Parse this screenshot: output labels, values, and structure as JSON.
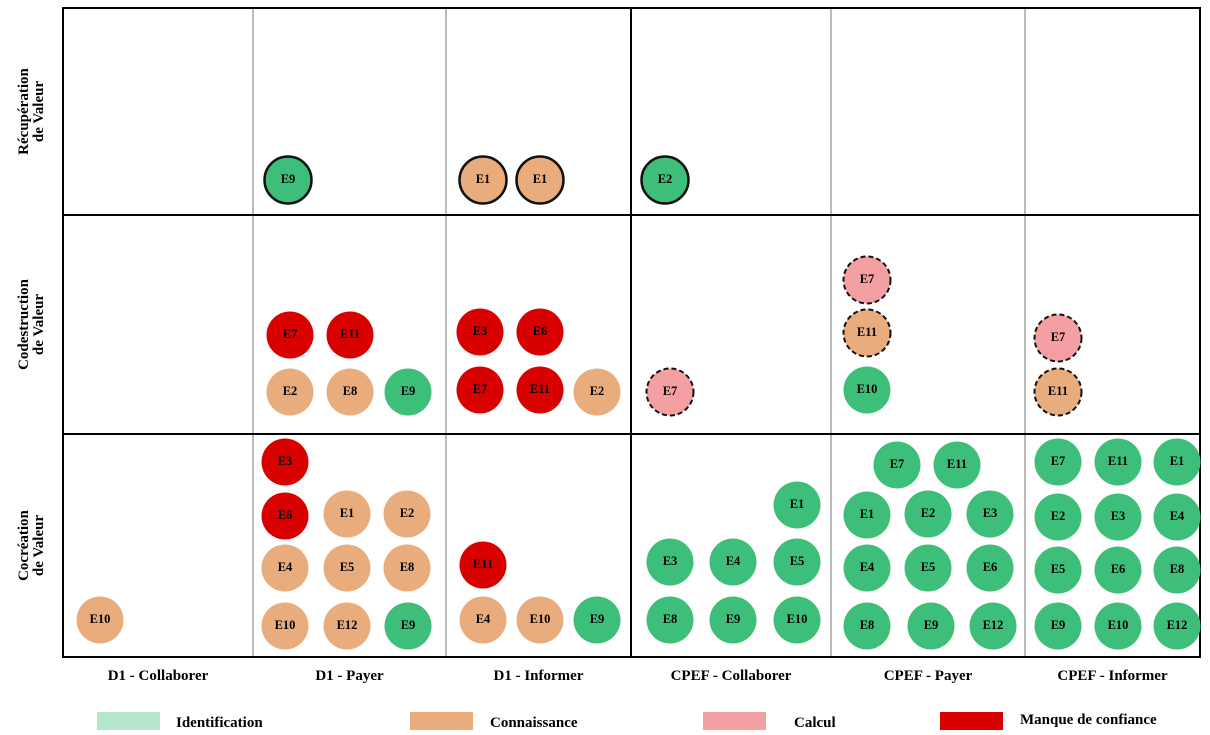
{
  "columns": [
    "D1 - Collaborer",
    "D1 - Payer",
    "D1 - Informer",
    "CPEF - Collaborer",
    "CPEF - Payer",
    "CPEF - Informer"
  ],
  "rows": [
    {
      "label": [
        "Récupération",
        "de Valeur"
      ],
      "cells": [
        [],
        [
          "E9"
        ],
        [
          "E1",
          "E1"
        ],
        [
          "E2"
        ],
        [],
        []
      ]
    },
    {
      "label": [
        "Codestruction",
        "de Valeur"
      ],
      "cells": [
        [],
        [
          "E7",
          "E11",
          "E2",
          "E8",
          "E9"
        ],
        [
          "E3",
          "E6",
          "E7",
          "E11",
          "E2"
        ],
        [
          "E7"
        ],
        [
          "E7",
          "E11",
          "E10"
        ],
        [
          "E7",
          "E11"
        ]
      ]
    },
    {
      "label": [
        "Cocréation",
        "de Valeur"
      ],
      "cells": [
        [
          "E10"
        ],
        [
          "E3",
          "E6",
          "E1",
          "E2",
          "E4",
          "E5",
          "E8",
          "E10",
          "E12",
          "E9"
        ],
        [
          "E11",
          "E4",
          "E10",
          "E9"
        ],
        [
          "E1",
          "E3",
          "E4",
          "E5",
          "E8",
          "E9",
          "E10"
        ],
        [
          "E7",
          "E11",
          "E1",
          "E2",
          "E3",
          "E4",
          "E5",
          "E6",
          "E8",
          "E9",
          "E12"
        ],
        [
          "E7",
          "E11",
          "E1",
          "E2",
          "E3",
          "E4",
          "E5",
          "E6",
          "E8",
          "E9",
          "E10",
          "E12"
        ]
      ]
    }
  ],
  "legend": [
    "Identification",
    "Connaissance",
    "Calcul",
    "Manque de confiance"
  ]
}
